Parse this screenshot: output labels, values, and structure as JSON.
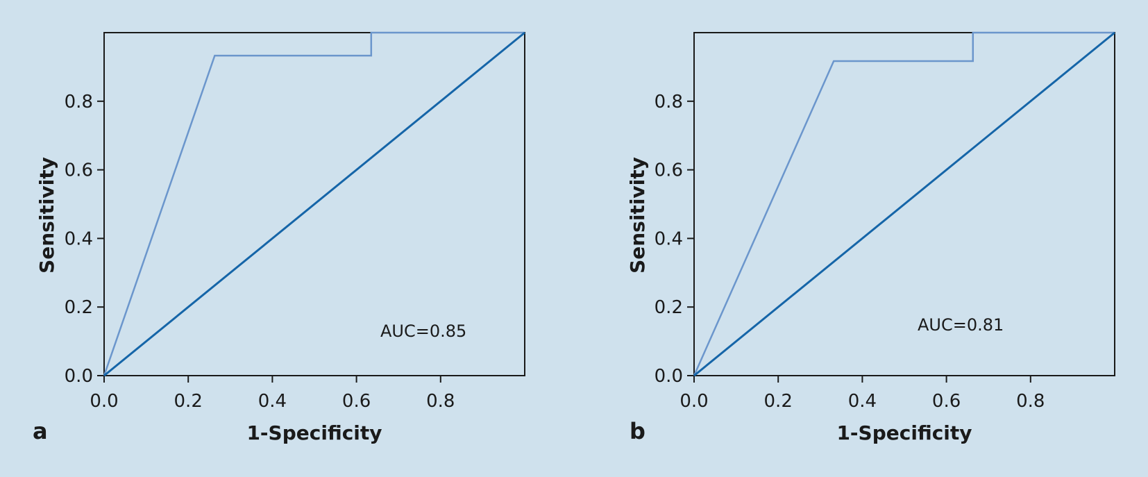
{
  "chart_data": [
    {
      "type": "line",
      "panel_label": "a",
      "xlabel": "1-Specificity",
      "ylabel": "Sensitivity",
      "xlim": [
        0,
        1
      ],
      "ylim": [
        0,
        1
      ],
      "x_ticks": [
        0.0,
        0.2,
        0.4,
        0.6,
        0.8
      ],
      "x_tick_labels": [
        "0.0",
        "0.2",
        "0.4",
        "0.6",
        "0.8"
      ],
      "y_ticks": [
        0.0,
        0.2,
        0.4,
        0.6,
        0.8
      ],
      "y_tick_labels": [
        "0.0",
        "0.2",
        "0.4",
        "0.6",
        "0.8"
      ],
      "annotation": "AUC=0.85",
      "series": [
        {
          "role": "roc",
          "color": "#6b96cc",
          "x": [
            0.0,
            0.263,
            0.635,
            0.635,
            1.0
          ],
          "y": [
            0.0,
            0.933,
            0.933,
            1.0,
            1.0
          ]
        },
        {
          "role": "reference",
          "color": "#1565a8",
          "x": [
            0.0,
            1.0
          ],
          "y": [
            0.0,
            1.0
          ]
        }
      ]
    },
    {
      "type": "line",
      "panel_label": "b",
      "xlabel": "1-Specificity",
      "ylabel": "Sensitivity",
      "xlim": [
        0,
        1
      ],
      "ylim": [
        0,
        1
      ],
      "x_ticks": [
        0.0,
        0.2,
        0.4,
        0.6,
        0.8
      ],
      "x_tick_labels": [
        "0.0",
        "0.2",
        "0.4",
        "0.6",
        "0.8"
      ],
      "y_ticks": [
        0.0,
        0.2,
        0.4,
        0.6,
        0.8
      ],
      "y_tick_labels": [
        "0.0",
        "0.2",
        "0.4",
        "0.6",
        "0.8"
      ],
      "annotation": "AUC=0.81",
      "series": [
        {
          "role": "roc",
          "color": "#6b96cc",
          "x": [
            0.0,
            0.332,
            0.663,
            0.663,
            1.0
          ],
          "y": [
            0.0,
            0.917,
            0.917,
            1.0,
            1.0
          ]
        },
        {
          "role": "reference",
          "color": "#1565a8",
          "x": [
            0.0,
            1.0
          ],
          "y": [
            0.0,
            1.0
          ]
        }
      ]
    }
  ]
}
